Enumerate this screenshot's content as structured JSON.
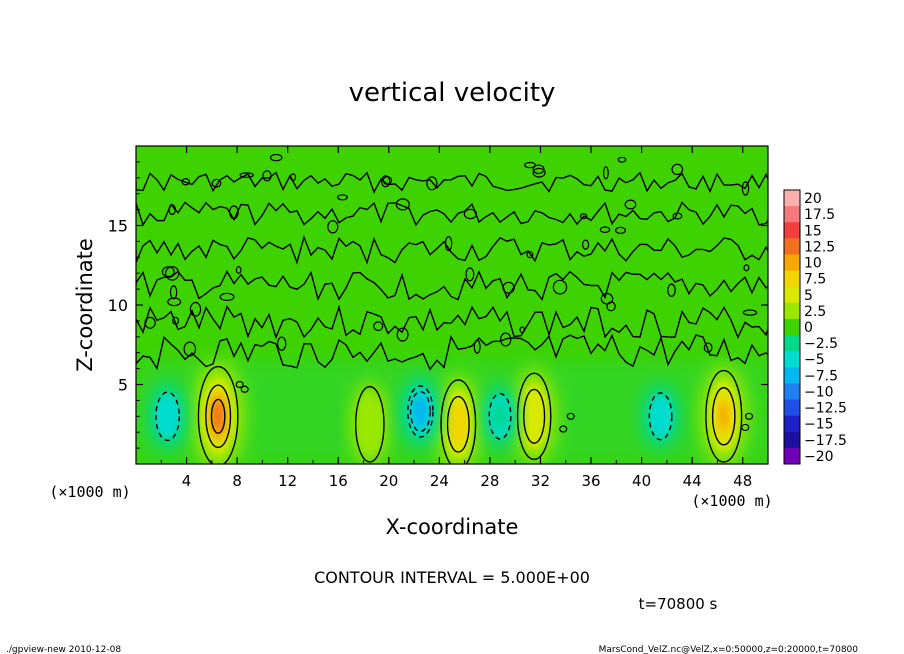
{
  "chart_data": {
    "type": "heatmap",
    "title": "vertical velocity",
    "xlabel": "X-coordinate",
    "ylabel": "Z-coordinate",
    "x_unit": "(×1000 m)",
    "y_unit": "(×1000 m)",
    "xlim": [
      0,
      50
    ],
    "ylim": [
      0,
      20
    ],
    "x_ticks": [
      "4",
      "8",
      "12",
      "16",
      "20",
      "24",
      "28",
      "32",
      "36",
      "40",
      "44",
      "48"
    ],
    "y_ticks": [
      "5",
      "10",
      "15"
    ],
    "colorbar": {
      "labels": [
        "20",
        "17.5",
        "15",
        "12.5",
        "10",
        "7.5",
        "5",
        "2.5",
        "0",
        "−2.5",
        "−5",
        "−7.5",
        "−10",
        "−12.5",
        "−15",
        "−17.5",
        "−20"
      ],
      "colors": [
        "#fbb0b0",
        "#f57a7a",
        "#f04040",
        "#f07020",
        "#f7a800",
        "#f2d400",
        "#d8e800",
        "#9ae800",
        "#3ed200",
        "#00d88a",
        "#00dcd0",
        "#00b8f0",
        "#2080f0",
        "#2050e8",
        "#2020c8",
        "#1c10a0",
        "#7000b8"
      ]
    },
    "field_features": [
      {
        "type": "updraft",
        "x": 6.5,
        "z": 3.0,
        "peak": 12
      },
      {
        "type": "updraft",
        "x": 25.5,
        "z": 2.5,
        "peak": 8
      },
      {
        "type": "updraft",
        "x": 31.5,
        "z": 3.0,
        "peak": 7
      },
      {
        "type": "updraft",
        "x": 46.5,
        "z": 3.0,
        "peak": 9
      },
      {
        "type": "updraft",
        "x": 18.5,
        "z": 2.5,
        "peak": 3
      },
      {
        "type": "downdraft",
        "x": 2.5,
        "z": 3.0,
        "peak": -6
      },
      {
        "type": "downdraft",
        "x": 22.5,
        "z": 3.3,
        "peak": -8
      },
      {
        "type": "downdraft",
        "x": 28.8,
        "z": 3.0,
        "peak": -4
      },
      {
        "type": "downdraft",
        "x": 41.5,
        "z": 3.0,
        "peak": -5
      }
    ]
  },
  "contour_interval_text": "CONTOUR INTERVAL = 5.000E+00",
  "time_text": "t=70800 s",
  "footer_left": "./gpview-new  2010-12-08",
  "footer_right": "MarsCond_VelZ.nc@VelZ,x=0:50000,z=0:20000,t=70800"
}
